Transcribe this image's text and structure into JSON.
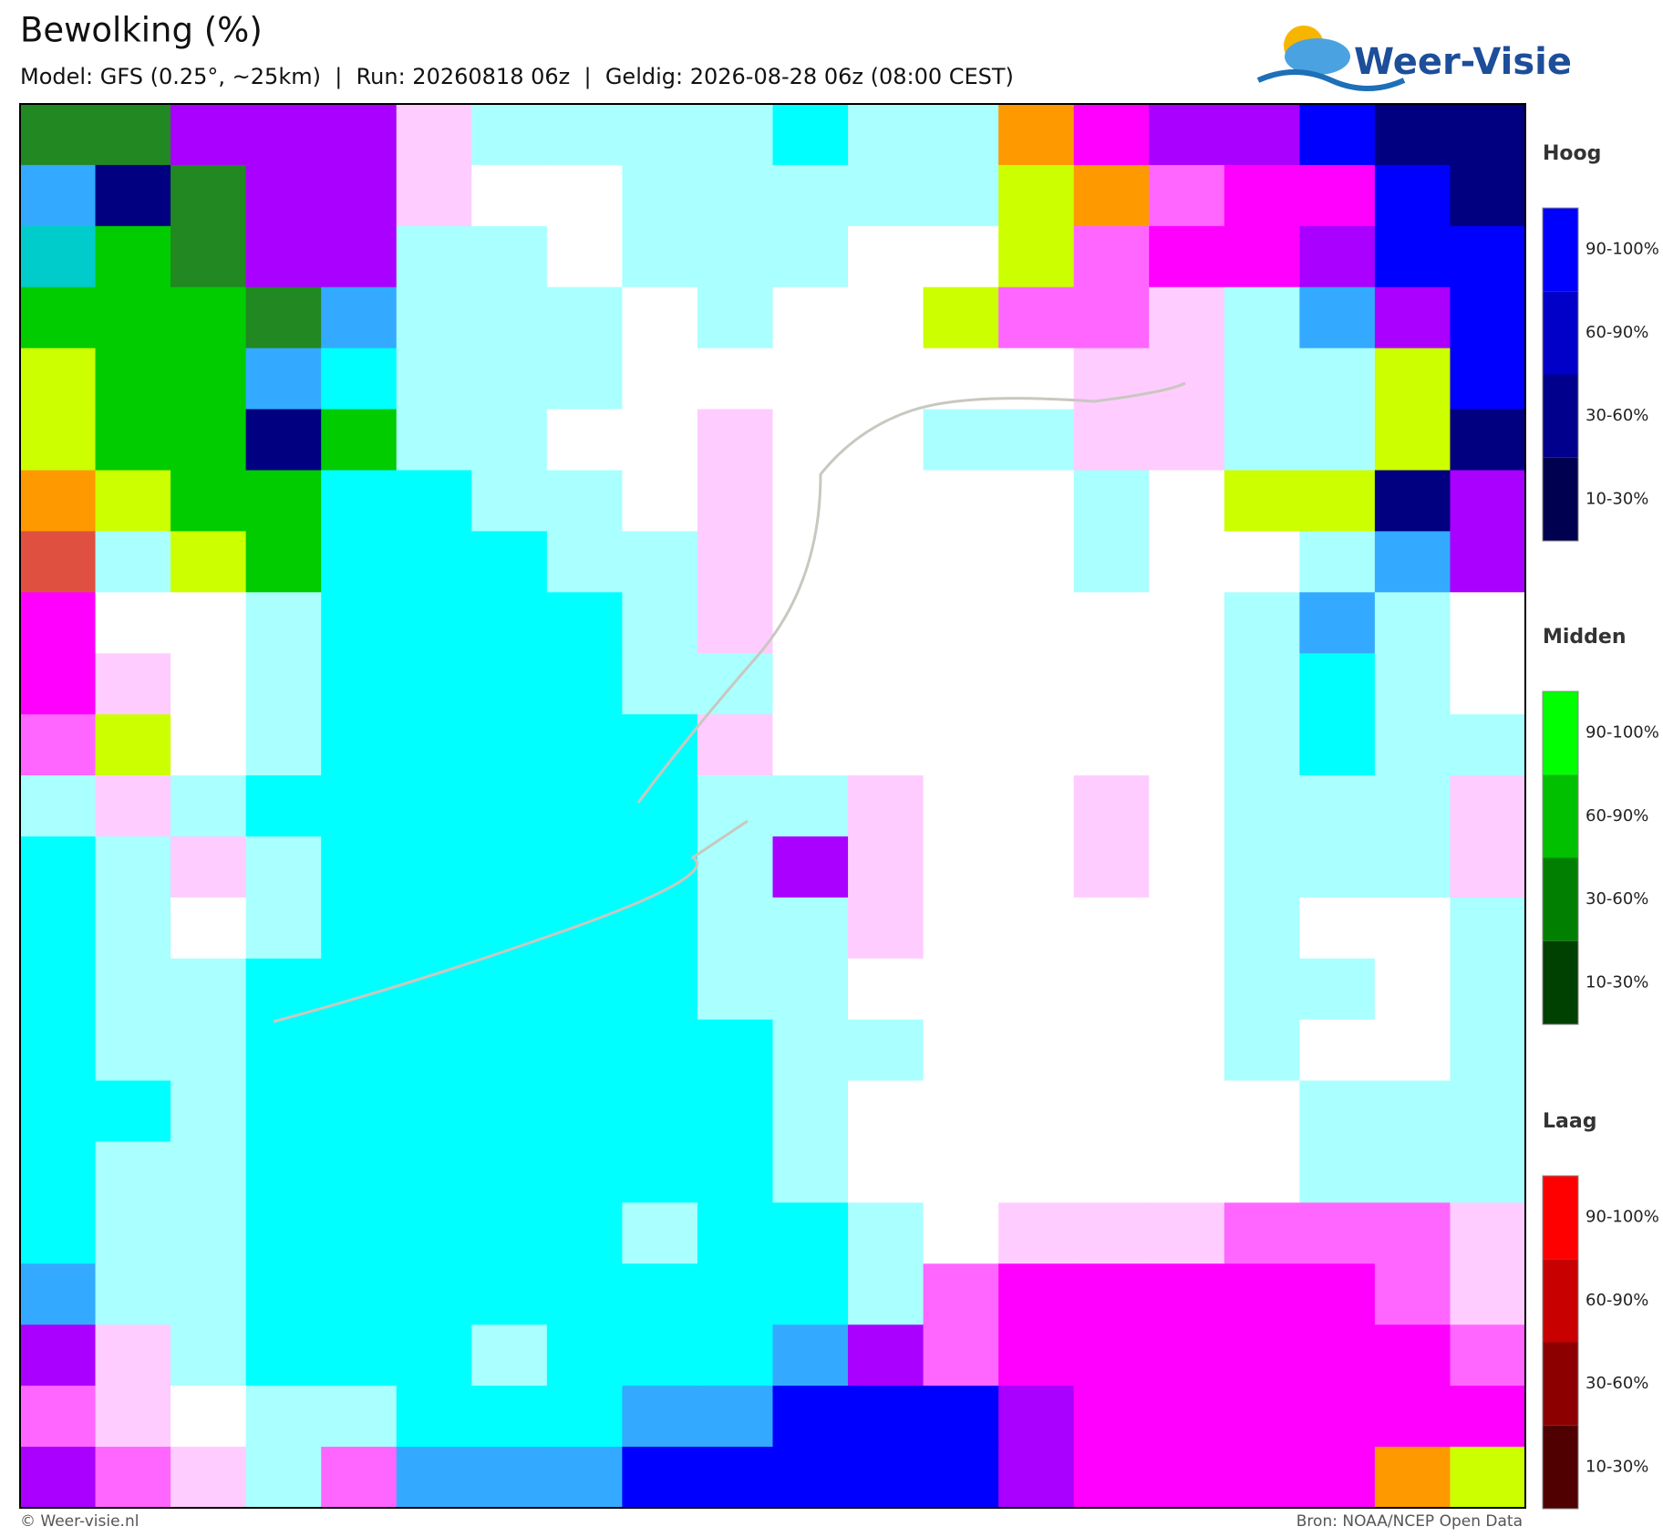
{
  "header": {
    "title": "Bewolking (%)",
    "subtitle": "Model: GFS (0.25°, ~25km)  |  Run: 20260818 06z  |  Geldig: 2026-08-28 06z (08:00 CEST)"
  },
  "logo": "Weer-Visie",
  "legends": [
    {
      "title": "Hoog",
      "labels": [
        "90-100%",
        "60-90%",
        "30-60%",
        "10-30%"
      ]
    },
    {
      "title": "Midden",
      "labels": [
        "90-100%",
        "60-90%",
        "30-60%",
        "10-30%"
      ]
    },
    {
      "title": "Laag",
      "labels": [
        "90-100%",
        "60-90%",
        "30-60%",
        "10-30%"
      ]
    }
  ],
  "footer": {
    "left": "© Weer-visie.nl",
    "right": "Bron: NOAA/NCEP Open Data"
  }
}
